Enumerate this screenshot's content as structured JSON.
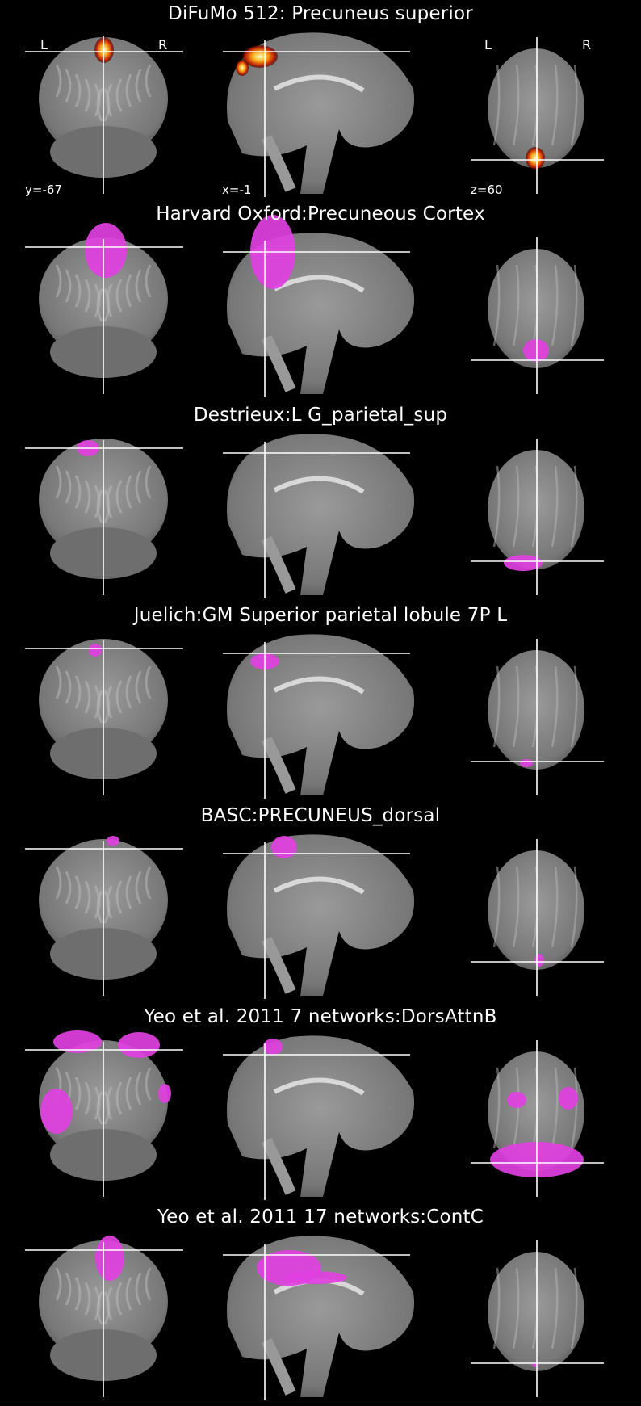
{
  "panels": [
    {
      "title": "DiFuMo 512: Precuneus superior",
      "overlay": "heatmap"
    },
    {
      "title": "Harvard Oxford:Precuneous Cortex",
      "overlay": "magenta"
    },
    {
      "title": "Destrieux:L G_parietal_sup",
      "overlay": "magenta"
    },
    {
      "title": "Juelich:GM Superior parietal lobule 7P L",
      "overlay": "magenta"
    },
    {
      "title": "BASC:PRECUNEUS_dorsal",
      "overlay": "magenta"
    },
    {
      "title": "Yeo et al. 2011 7 networks:DorsAttnB",
      "overlay": "magenta"
    },
    {
      "title": "Yeo et al. 2011 17 networks:ContC",
      "overlay": "magenta"
    }
  ],
  "annotations": {
    "coronal_coord": "y=-67",
    "sagittal_coord": "x=-1",
    "axial_coord": "z=60",
    "left_label": "L",
    "right_label": "R"
  },
  "colors": {
    "background": "#000000",
    "brain_gray": "#8a8a8a",
    "overlay_magenta": "#e040e0",
    "crosshair": "#ffffff"
  }
}
